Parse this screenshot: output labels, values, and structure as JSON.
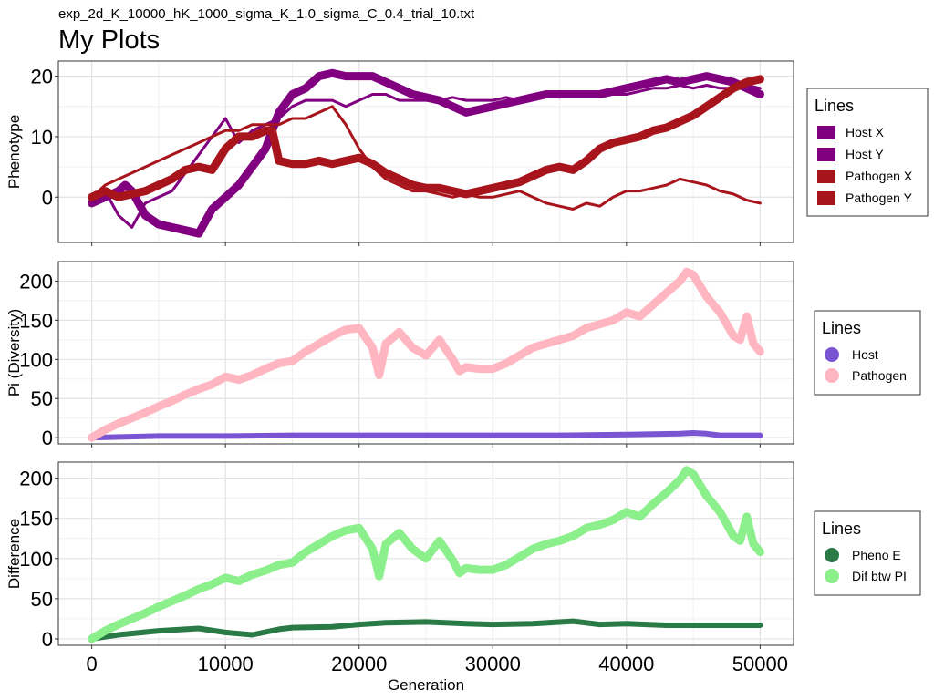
{
  "figure": {
    "subtitle": "exp_2d_K_10000_hK_1000_sigma_K_1.0_sigma_C_0.4_trial_10.txt",
    "title": "My Plots",
    "xlabel": "Generation"
  },
  "chart_data": [
    {
      "type": "line",
      "ylabel": "Phenotype",
      "xlim": [
        -2500,
        52500
      ],
      "ylim": [
        -7.5,
        22.5
      ],
      "x_ticks": [
        0,
        10000,
        20000,
        30000,
        40000,
        50000
      ],
      "x_tick_labels": [
        "0",
        "10000",
        "20000",
        "30000",
        "40000",
        "50000"
      ],
      "y_ticks": [
        0,
        10,
        20
      ],
      "y_tick_labels": [
        "0",
        "10",
        "20"
      ],
      "grid": true,
      "legend": {
        "title": "Lines",
        "placement": "right",
        "marker": "square"
      },
      "series": [
        {
          "name": "Host X",
          "color": "#800080",
          "width": 9,
          "x": [
            0,
            1000,
            2000,
            2500,
            3000,
            4000,
            5000,
            6000,
            7000,
            8000,
            9000,
            10000,
            11000,
            12000,
            13000,
            14000,
            15000,
            16000,
            17000,
            18000,
            19000,
            20000,
            21000,
            22000,
            23000,
            24000,
            25000,
            26000,
            27000,
            28000,
            29000,
            30000,
            31000,
            32000,
            33000,
            34000,
            35000,
            36000,
            37000,
            38000,
            39000,
            40000,
            41000,
            42000,
            43000,
            44000,
            45000,
            46000,
            47000,
            48000,
            49000,
            50000
          ],
          "y": [
            -1,
            0,
            1,
            2,
            1,
            -3,
            -4.5,
            -5,
            -5.5,
            -6,
            -2,
            0,
            2,
            5,
            8,
            14,
            17,
            18,
            20,
            20.5,
            20,
            20,
            20,
            19,
            18,
            17,
            16.5,
            16,
            15,
            14,
            14.5,
            15,
            15.5,
            16,
            16.5,
            17,
            17,
            17,
            17,
            17,
            17.5,
            18,
            18.5,
            19,
            19.5,
            19,
            19.5,
            20,
            19.5,
            19,
            18,
            17
          ]
        },
        {
          "name": "Host Y",
          "color": "#800080",
          "width": 3,
          "x": [
            0,
            1000,
            2000,
            3000,
            4000,
            5000,
            6000,
            7000,
            8000,
            9000,
            10000,
            11000,
            12000,
            13000,
            14000,
            15000,
            16000,
            17000,
            18000,
            19000,
            20000,
            21000,
            22000,
            23000,
            24000,
            25000,
            26000,
            27000,
            28000,
            29000,
            30000,
            31000,
            32000,
            33000,
            34000,
            35000,
            36000,
            37000,
            38000,
            39000,
            40000,
            41000,
            42000,
            43000,
            44000,
            45000,
            46000,
            47000,
            48000,
            49000,
            50000
          ],
          "y": [
            0,
            1,
            -3,
            -5,
            -1,
            0,
            1,
            4,
            7,
            10,
            13,
            9,
            11,
            12,
            13,
            15,
            16,
            16,
            16,
            15,
            16,
            17,
            17,
            16,
            16,
            16,
            16,
            16.5,
            16,
            16,
            16,
            16.5,
            16,
            16.5,
            17,
            16.5,
            17,
            17,
            17,
            17,
            17,
            17.5,
            18,
            18,
            18.5,
            18,
            18.5,
            18,
            18,
            18.5,
            18
          ]
        },
        {
          "name": "Pathogen X",
          "color": "#A8141B",
          "width": 9,
          "x": [
            0,
            1000,
            2000,
            3000,
            4000,
            5000,
            6000,
            7000,
            8000,
            9000,
            10000,
            11000,
            12000,
            13000,
            13500,
            14000,
            15000,
            16000,
            17000,
            18000,
            19000,
            20000,
            21000,
            22000,
            23000,
            24000,
            25000,
            26000,
            27000,
            28000,
            29000,
            30000,
            31000,
            32000,
            33000,
            34000,
            35000,
            36000,
            37000,
            38000,
            39000,
            40000,
            41000,
            42000,
            43000,
            44000,
            45000,
            46000,
            47000,
            48000,
            49000,
            50000
          ],
          "y": [
            0,
            1,
            0,
            0.5,
            1,
            2,
            3,
            4.5,
            5,
            4.5,
            8,
            10,
            10,
            11,
            11,
            6,
            5.5,
            5.5,
            6,
            5.5,
            6,
            6.5,
            5.5,
            4,
            3,
            2,
            1.5,
            1.5,
            1,
            0.5,
            1,
            1.5,
            2,
            2.5,
            3.5,
            4.5,
            5,
            4.5,
            6,
            8,
            9,
            9.5,
            10,
            11,
            11.5,
            12.5,
            13.5,
            15,
            16.5,
            18,
            19,
            19.5
          ]
        },
        {
          "name": "Pathogen Y",
          "color": "#A8141B",
          "width": 3,
          "x": [
            0,
            1000,
            2000,
            3000,
            4000,
            5000,
            6000,
            7000,
            8000,
            9000,
            10000,
            11000,
            12000,
            13000,
            14000,
            15000,
            16000,
            17000,
            18000,
            19000,
            20000,
            21000,
            22000,
            23000,
            24000,
            25000,
            26000,
            27000,
            28000,
            29000,
            30000,
            31000,
            32000,
            33000,
            34000,
            35000,
            36000,
            37000,
            38000,
            39000,
            40000,
            41000,
            42000,
            43000,
            44000,
            45000,
            46000,
            47000,
            48000,
            49000,
            50000
          ],
          "y": [
            0,
            2,
            3,
            4,
            5,
            6,
            7,
            8,
            9,
            10,
            11,
            11,
            12,
            12,
            12,
            13,
            13,
            14,
            15,
            12,
            8,
            5,
            3,
            2,
            1,
            1,
            0.5,
            0,
            0.5,
            0,
            0,
            0.5,
            1,
            0,
            -1,
            -1.5,
            -2,
            -1,
            -1.5,
            0,
            1,
            1,
            1.5,
            2,
            3,
            2.5,
            2,
            1,
            0.5,
            -0.5,
            -1
          ]
        }
      ]
    },
    {
      "type": "line",
      "ylabel": "Pi (Diversity)",
      "xlim": [
        -2500,
        52500
      ],
      "ylim": [
        -8,
        225
      ],
      "x_ticks": [
        0,
        10000,
        20000,
        30000,
        40000,
        50000
      ],
      "x_tick_labels": [
        "0",
        "10000",
        "20000",
        "30000",
        "40000",
        "50000"
      ],
      "y_ticks": [
        0,
        50,
        100,
        150,
        200
      ],
      "y_tick_labels": [
        "0",
        "50",
        "100",
        "150",
        "200"
      ],
      "grid": true,
      "legend": {
        "title": "Lines",
        "placement": "right",
        "marker": "circle"
      },
      "series": [
        {
          "name": "Host",
          "color": "#7B54D3",
          "width": 6,
          "x": [
            0,
            5000,
            10000,
            15000,
            20000,
            25000,
            30000,
            35000,
            40000,
            44000,
            45000,
            46000,
            47000,
            48000,
            49000,
            50000
          ],
          "y": [
            0,
            2,
            2,
            3,
            3,
            3,
            3,
            3,
            4,
            5,
            6,
            5,
            3,
            3,
            3,
            3
          ]
        },
        {
          "name": "Pathogen",
          "color": "#FFB6C1",
          "width": 9,
          "x": [
            0,
            1000,
            2000,
            3000,
            4000,
            5000,
            6000,
            7000,
            8000,
            9000,
            10000,
            11000,
            12000,
            13000,
            14000,
            15000,
            16000,
            17000,
            18000,
            19000,
            20000,
            21000,
            21500,
            22000,
            23000,
            24000,
            25000,
            26000,
            27000,
            27500,
            28000,
            29000,
            30000,
            31000,
            32000,
            33000,
            34000,
            35000,
            36000,
            37000,
            38000,
            39000,
            40000,
            41000,
            42000,
            43000,
            44000,
            44500,
            45000,
            46000,
            47000,
            48000,
            48500,
            49000,
            49500,
            50000
          ],
          "y": [
            0,
            10,
            18,
            25,
            32,
            40,
            47,
            55,
            62,
            68,
            78,
            74,
            80,
            88,
            95,
            98,
            110,
            120,
            130,
            138,
            140,
            115,
            80,
            120,
            135,
            115,
            105,
            125,
            100,
            85,
            90,
            88,
            88,
            95,
            105,
            115,
            120,
            125,
            130,
            140,
            145,
            150,
            160,
            155,
            170,
            185,
            200,
            212,
            208,
            180,
            160,
            130,
            125,
            155,
            120,
            110
          ]
        }
      ]
    },
    {
      "type": "line",
      "ylabel": "Difference",
      "xlim": [
        -2500,
        52500
      ],
      "ylim": [
        -8,
        220
      ],
      "x_ticks": [
        0,
        10000,
        20000,
        30000,
        40000,
        50000
      ],
      "x_tick_labels": [
        "0",
        "10000",
        "20000",
        "30000",
        "40000",
        "50000"
      ],
      "y_ticks": [
        0,
        50,
        100,
        150,
        200
      ],
      "y_tick_labels": [
        "0",
        "50",
        "100",
        "150",
        "200"
      ],
      "grid": true,
      "legend": {
        "title": "Lines",
        "placement": "right",
        "marker": "circle"
      },
      "series": [
        {
          "name": "Pheno E",
          "color": "#2A7A45",
          "width": 6,
          "x": [
            0,
            2000,
            5000,
            8000,
            10000,
            12000,
            14000,
            15000,
            18000,
            20000,
            22000,
            25000,
            28000,
            30000,
            33000,
            36000,
            38000,
            40000,
            43000,
            46000,
            48000,
            50000
          ],
          "y": [
            0,
            5,
            10,
            13,
            8,
            5,
            12,
            14,
            15,
            18,
            20,
            21,
            19,
            18,
            19,
            22,
            18,
            19,
            17,
            17,
            17,
            17
          ]
        },
        {
          "name": "Dif btw PI",
          "color": "#8BEF8B",
          "width": 9,
          "x": [
            0,
            1000,
            2000,
            3000,
            4000,
            5000,
            6000,
            7000,
            8000,
            9000,
            10000,
            11000,
            12000,
            13000,
            14000,
            15000,
            16000,
            17000,
            18000,
            19000,
            20000,
            21000,
            21500,
            22000,
            23000,
            24000,
            25000,
            26000,
            27000,
            27500,
            28000,
            29000,
            30000,
            31000,
            32000,
            33000,
            34000,
            35000,
            36000,
            37000,
            38000,
            39000,
            40000,
            41000,
            42000,
            43000,
            44000,
            44500,
            45000,
            46000,
            47000,
            48000,
            48500,
            49000,
            49500,
            50000
          ],
          "y": [
            0,
            10,
            18,
            25,
            32,
            40,
            47,
            54,
            62,
            68,
            76,
            72,
            80,
            85,
            92,
            95,
            108,
            118,
            128,
            135,
            138,
            112,
            78,
            118,
            132,
            112,
            100,
            122,
            98,
            82,
            88,
            86,
            86,
            92,
            102,
            112,
            118,
            122,
            128,
            138,
            142,
            148,
            158,
            152,
            168,
            182,
            198,
            210,
            205,
            178,
            158,
            128,
            122,
            152,
            118,
            108
          ]
        }
      ]
    }
  ]
}
